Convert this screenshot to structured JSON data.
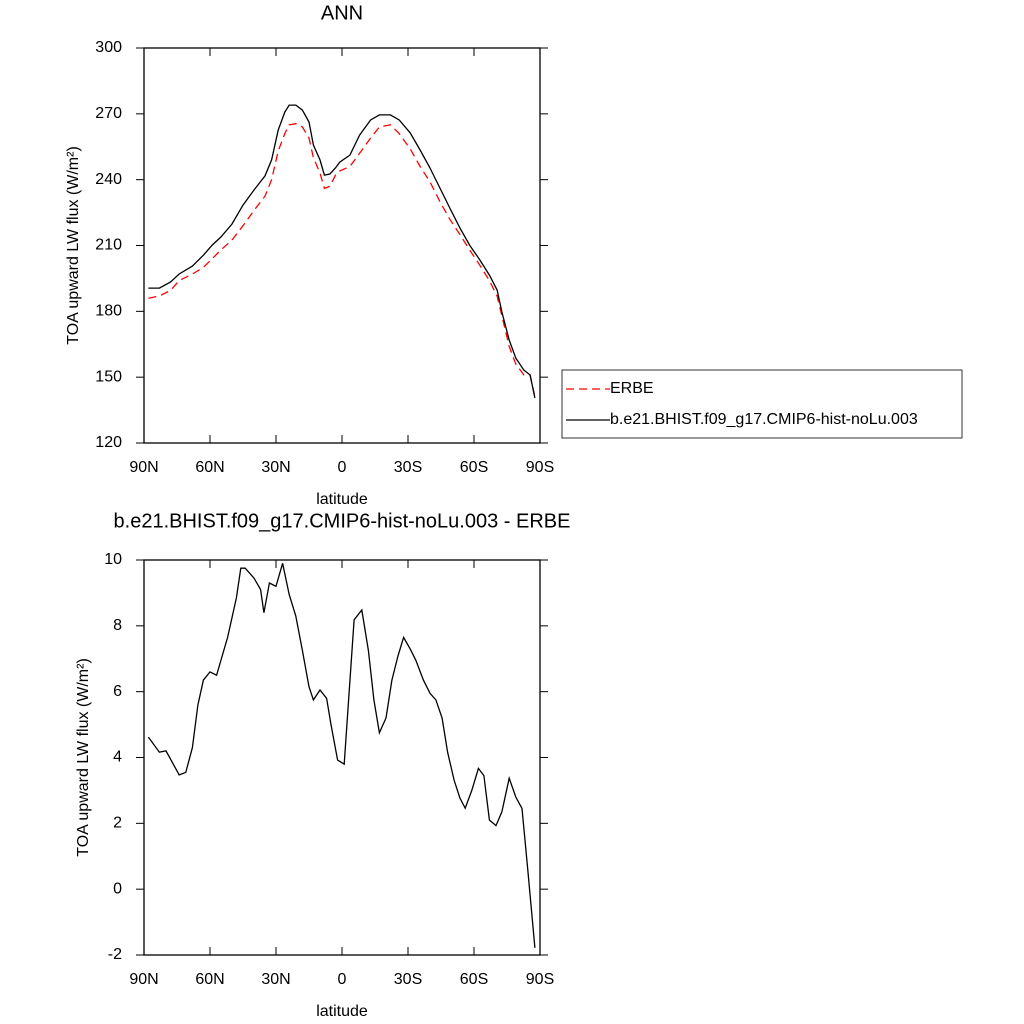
{
  "chart_data": [
    {
      "type": "line",
      "title": "ANN",
      "xlabel": "latitude",
      "ylabel": "TOA upward LW flux (W/m²)",
      "xlim": [
        90,
        -90
      ],
      "ylim": [
        120,
        300
      ],
      "xticks": [
        {
          "value": 90,
          "label": "90N"
        },
        {
          "value": 60,
          "label": "60N"
        },
        {
          "value": 30,
          "label": "30N"
        },
        0,
        {
          "value": -30,
          "label": "30S"
        },
        {
          "value": -60,
          "label": "60S"
        },
        {
          "value": -90,
          "label": "90S"
        }
      ],
      "yticks": [
        120,
        150,
        180,
        210,
        240,
        270,
        300
      ],
      "legend": "right",
      "x": [
        88,
        83,
        78,
        74,
        68,
        63,
        59,
        55,
        50,
        45,
        40,
        35,
        32,
        29,
        26,
        24,
        21,
        18,
        15,
        13,
        10,
        8,
        5.5,
        3,
        1,
        -3.6,
        -8,
        -13,
        -17,
        -22,
        -26,
        -31,
        -35.5,
        -40,
        -44.5,
        -49,
        -53.6,
        -58,
        -62.7,
        -67,
        -70.5,
        -72.7,
        -76,
        -79,
        -82.7,
        -85.5,
        -87.7
      ],
      "series": [
        {
          "name": "ERBE",
          "color": "#ff0000",
          "linestyle": "dashed",
          "values": [
            186,
            187,
            189.5,
            194,
            197,
            200,
            204,
            208,
            212.5,
            219,
            226,
            232.5,
            240,
            253,
            261,
            265,
            265.5,
            264,
            259,
            250,
            243,
            236,
            237,
            242,
            244,
            246,
            252,
            259,
            264,
            265,
            261,
            254,
            246,
            239,
            230,
            222,
            215,
            208,
            201,
            194,
            187,
            178,
            164,
            156,
            151,
            151,
            141
          ]
        },
        {
          "name": "b.e21.BHIST.f09_g17.CMIP6-hist-noLu.003",
          "color": "#000000",
          "linestyle": "solid",
          "values": [
            190.6,
            190.6,
            193.3,
            197,
            200.6,
            205.6,
            210.2,
            213.9,
            219.8,
            228.4,
            235.3,
            241.7,
            249,
            262.6,
            270.8,
            274,
            274,
            271.7,
            266.3,
            255.8,
            249,
            242.1,
            242.6,
            245.3,
            248,
            251.2,
            260.3,
            267.2,
            269.5,
            269.5,
            267.2,
            261.3,
            253.5,
            245.3,
            236.2,
            227.1,
            218,
            210.2,
            203.4,
            196.5,
            189.7,
            179.7,
            166.9,
            158.7,
            153.2,
            151,
            140.5
          ]
        }
      ]
    },
    {
      "type": "line",
      "title": "b.e21.BHIST.f09_g17.CMIP6-hist-noLu.003 - ERBE",
      "xlabel": "latitude",
      "ylabel": "TOA upward LW flux (W/m²)",
      "xlim": [
        90,
        -90
      ],
      "ylim": [
        -2,
        10
      ],
      "xticks": [
        {
          "value": 90,
          "label": "90N"
        },
        {
          "value": 60,
          "label": "60N"
        },
        {
          "value": 30,
          "label": "30N"
        },
        0,
        {
          "value": -30,
          "label": "30S"
        },
        {
          "value": -60,
          "label": "60S"
        },
        {
          "value": -90,
          "label": "90S"
        }
      ],
      "yticks": [
        -2,
        0,
        2,
        4,
        6,
        8,
        10
      ],
      "x": [
        88,
        83,
        80,
        74,
        71,
        68,
        65.5,
        63,
        60,
        57,
        52,
        48,
        46,
        44,
        40,
        37,
        35.5,
        33,
        30,
        27,
        24,
        21,
        18,
        15,
        13,
        10,
        7,
        5,
        2,
        -1,
        -5.5,
        -9,
        -12,
        -14.5,
        -17,
        -20,
        -22.7,
        -25.5,
        -28,
        -31,
        -33.6,
        -37,
        -40,
        -42.7,
        -45.5,
        -48,
        -51,
        -53.6,
        -56,
        -59,
        -62,
        -64.5,
        -67,
        -70,
        -72.7,
        -76,
        -79,
        -81.8,
        -84.5,
        -87.7
      ],
      "color": "#000000",
      "values": [
        4.62,
        4.16,
        4.2,
        3.47,
        3.55,
        4.3,
        5.6,
        6.35,
        6.6,
        6.5,
        7.65,
        8.85,
        9.75,
        9.75,
        9.45,
        9.1,
        8.4,
        9.3,
        9.2,
        9.9,
        8.95,
        8.3,
        7.25,
        6.15,
        5.75,
        6.05,
        5.8,
        5,
        3.92,
        3.8,
        8.18,
        8.48,
        7.25,
        5.75,
        4.75,
        5.2,
        6.35,
        7.1,
        7.65,
        7.3,
        6.95,
        6.35,
        5.95,
        5.75,
        5.2,
        4.16,
        3.3,
        2.77,
        2.46,
        3.0,
        3.67,
        3.45,
        2.1,
        1.93,
        2.35,
        3.37,
        2.8,
        2.45,
        0.55,
        -1.78
      ]
    }
  ]
}
